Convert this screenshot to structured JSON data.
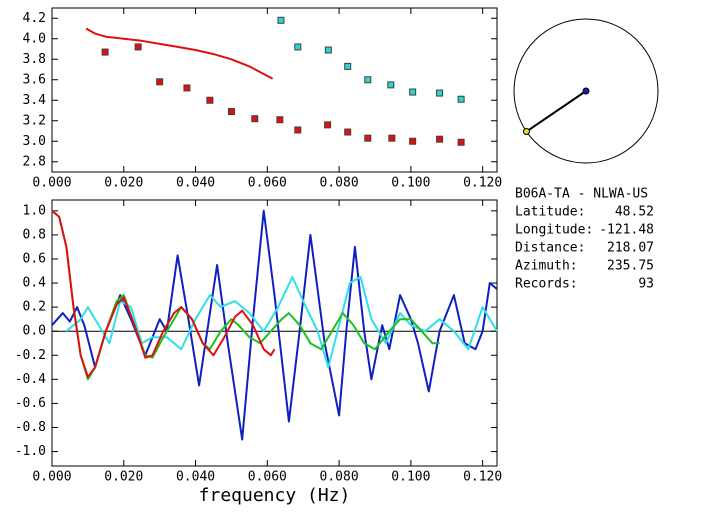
{
  "chart_data": [
    {
      "type": "scatter",
      "xlim": [
        0,
        0.124
      ],
      "ylim": [
        2.7,
        4.3
      ],
      "xticks": [
        {
          "value": 0,
          "label": "0.000"
        },
        {
          "value": 0.02,
          "label": "0.020"
        },
        {
          "value": 0.04,
          "label": "0.040"
        },
        {
          "value": 0.06,
          "label": "0.060"
        },
        {
          "value": 0.08,
          "label": "0.080"
        },
        {
          "value": 0.1,
          "label": "0.100"
        },
        {
          "value": 0.12,
          "label": "0.120"
        }
      ],
      "yticks": [
        2.8,
        {
          "value": 3.0,
          "label": "3.0"
        },
        3.2,
        3.4,
        3.6,
        3.8,
        {
          "value": 4.0,
          "label": "4.0"
        },
        4.2
      ],
      "series": [
        {
          "mode": "markers",
          "color": "#e01010",
          "x": [
            0.0148,
            0.024,
            0.03,
            0.0376,
            0.044,
            0.05,
            0.0565,
            0.0635,
            0.0685,
            0.0768,
            0.0824,
            0.088,
            0.0947,
            0.1005,
            0.108,
            0.114
          ],
          "values": [
            3.87,
            3.92,
            3.58,
            3.52,
            3.4,
            3.29,
            3.22,
            3.21,
            3.11,
            3.16,
            3.09,
            3.03,
            3.03,
            3.0,
            3.02,
            2.99
          ]
        },
        {
          "mode": "markers",
          "color": "#30d0d8",
          "x": [
            0.0638,
            0.0685,
            0.077,
            0.0824,
            0.088,
            0.0944,
            0.1005,
            0.108,
            0.114
          ],
          "values": [
            4.18,
            3.92,
            3.89,
            3.73,
            3.6,
            3.55,
            3.48,
            3.47,
            3.41
          ]
        },
        {
          "mode": "line",
          "color": "#e01010",
          "x": [
            0.0095,
            0.012,
            0.015,
            0.02,
            0.025,
            0.03,
            0.035,
            0.04,
            0.045,
            0.05,
            0.055,
            0.0615
          ],
          "values": [
            4.1,
            4.05,
            4.02,
            4.0,
            3.98,
            3.95,
            3.92,
            3.89,
            3.85,
            3.8,
            3.73,
            3.61
          ]
        }
      ]
    },
    {
      "type": "line",
      "x_label": "frequency (Hz)",
      "xlim": [
        0,
        0.124
      ],
      "ylim": [
        -1.12,
        1.09
      ],
      "xticks": [
        {
          "value": 0,
          "label": "0.000"
        },
        {
          "value": 0.02,
          "label": "0.020"
        },
        {
          "value": 0.04,
          "label": "0.040"
        },
        {
          "value": 0.06,
          "label": "0.060"
        },
        {
          "value": 0.08,
          "label": "0.080"
        },
        {
          "value": 0.1,
          "label": "0.100"
        },
        {
          "value": 0.12,
          "label": "0.120"
        }
      ],
      "yticks": [
        {
          "value": -1.0,
          "label": "-1.0"
        },
        -0.8,
        -0.6,
        -0.4,
        -0.2,
        {
          "value": 0,
          "label": "0.0"
        },
        0.2,
        0.4,
        0.6,
        0.8,
        {
          "value": 1.0,
          "label": "1.0"
        }
      ],
      "series": [
        {
          "mode": "line",
          "color": "#1020c0",
          "x": [
            0.0,
            0.003,
            0.005,
            0.007,
            0.009,
            0.012,
            0.015,
            0.019,
            0.022,
            0.026,
            0.03,
            0.032,
            0.035,
            0.038,
            0.041,
            0.046,
            0.049,
            0.053,
            0.056,
            0.059,
            0.062,
            0.066,
            0.069,
            0.072,
            0.076,
            0.08,
            0.082,
            0.0844,
            0.087,
            0.089,
            0.092,
            0.094,
            0.097,
            0.1,
            0.102,
            0.105,
            0.108,
            0.112,
            0.115,
            0.118,
            0.12,
            0.122,
            0.124
          ],
          "values": [
            0.05,
            0.15,
            0.08,
            0.2,
            0.05,
            -0.3,
            0.0,
            0.3,
            0.1,
            -0.2,
            0.1,
            0.0,
            0.63,
            0.1,
            -0.45,
            0.55,
            -0.1,
            -0.9,
            0.1,
            1.0,
            0.3,
            -0.75,
            0.0,
            0.8,
            -0.1,
            -0.7,
            0.0,
            0.7,
            0.0,
            -0.4,
            0.05,
            -0.15,
            0.3,
            0.1,
            -0.1,
            -0.5,
            0.0,
            0.3,
            -0.1,
            -0.15,
            0.0,
            0.4,
            0.35
          ]
        },
        {
          "mode": "line",
          "color": "#30e0e8",
          "x": [
            0.004,
            0.008,
            0.01,
            0.013,
            0.016,
            0.019,
            0.022,
            0.025,
            0.028,
            0.032,
            0.036,
            0.04,
            0.044,
            0.047,
            0.051,
            0.055,
            0.059,
            0.063,
            0.067,
            0.07,
            0.074,
            0.077,
            0.08,
            0.083,
            0.086,
            0.089,
            0.093,
            0.097,
            0.1,
            0.104,
            0.108,
            0.112,
            0.116,
            0.12,
            0.124
          ],
          "values": [
            0.0,
            0.1,
            0.2,
            0.05,
            -0.1,
            0.25,
            0.2,
            -0.1,
            -0.05,
            -0.05,
            -0.15,
            0.1,
            0.3,
            0.2,
            0.25,
            0.15,
            0.0,
            0.2,
            0.45,
            0.25,
            0.0,
            -0.3,
            0.05,
            0.4,
            0.45,
            0.1,
            -0.1,
            0.15,
            0.05,
            0.0,
            0.1,
            0.0,
            -0.15,
            0.2,
            0.0
          ]
        },
        {
          "mode": "line",
          "color": "#20c020",
          "x": [
            0.0,
            0.002,
            0.004,
            0.006,
            0.008,
            0.01,
            0.012,
            0.015,
            0.018,
            0.02,
            0.023,
            0.026,
            0.028,
            0.031,
            0.034,
            0.036,
            0.039,
            0.042,
            0.044,
            0.047,
            0.05,
            0.052,
            0.055,
            0.058,
            0.061,
            0.064,
            0.066,
            0.069,
            0.072,
            0.075,
            0.078,
            0.081,
            0.084,
            0.087,
            0.09,
            0.094,
            0.097,
            0.1,
            0.103,
            0.106,
            0.108
          ],
          "values": [
            1.0,
            0.95,
            0.7,
            0.2,
            -0.2,
            -0.4,
            -0.3,
            0.0,
            0.25,
            0.3,
            0.05,
            -0.2,
            -0.22,
            -0.05,
            0.1,
            0.2,
            0.1,
            -0.1,
            -0.15,
            0.0,
            0.1,
            0.05,
            -0.05,
            -0.1,
            0.0,
            0.1,
            0.15,
            0.05,
            -0.1,
            -0.15,
            0.0,
            0.15,
            0.05,
            -0.1,
            -0.15,
            0.0,
            0.1,
            0.1,
            0.0,
            -0.1,
            -0.1
          ]
        },
        {
          "mode": "line",
          "color": "#e01010",
          "x": [
            0.0,
            0.002,
            0.004,
            0.006,
            0.008,
            0.01,
            0.012,
            0.015,
            0.018,
            0.02,
            0.023,
            0.026,
            0.028,
            0.031,
            0.034,
            0.036,
            0.039,
            0.042,
            0.045,
            0.048,
            0.051,
            0.053,
            0.056,
            0.059,
            0.061,
            0.062
          ],
          "values": [
            1.0,
            0.95,
            0.7,
            0.2,
            -0.2,
            -0.38,
            -0.3,
            0.0,
            0.22,
            0.28,
            0.05,
            -0.22,
            -0.2,
            0.0,
            0.15,
            0.2,
            0.1,
            -0.1,
            -0.2,
            -0.05,
            0.12,
            0.17,
            0.05,
            -0.15,
            -0.2,
            -0.15
          ]
        }
      ]
    }
  ],
  "info": {
    "station": "B06A-TA - NLWA-US",
    "rows": [
      {
        "label": "Latitude:",
        "value": 48.52
      },
      {
        "label": "Longitude:",
        "value": -121.48
      },
      {
        "label": "Distance:",
        "value": 218.07
      },
      {
        "label": "Azimuth:",
        "value": 235.75
      },
      {
        "label": "Records:",
        "value": 93
      }
    ]
  }
}
